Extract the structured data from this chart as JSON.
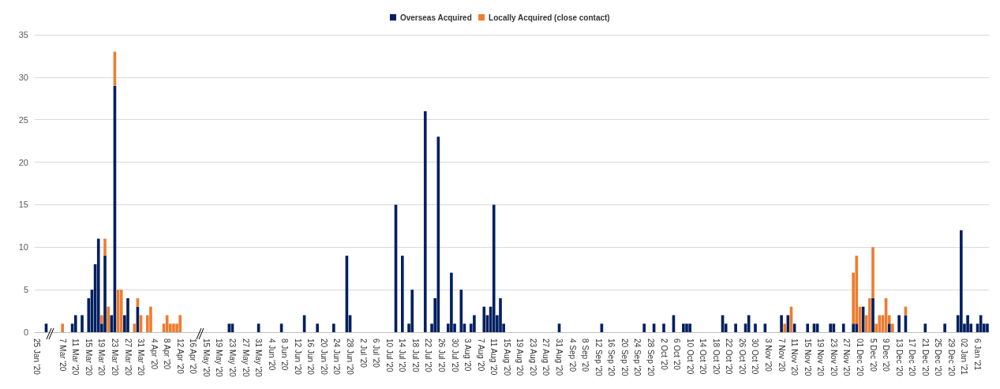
{
  "chart_data": {
    "type": "bar",
    "stacked": true,
    "categories": [
      "25 Jan '20",
      null,
      null,
      null,
      null,
      null,
      null,
      null,
      "7 Mar '20",
      null,
      null,
      null,
      "11 Mar '20",
      null,
      null,
      null,
      "15 Mar '20",
      null,
      null,
      null,
      "19 Mar '20",
      null,
      null,
      null,
      "23 Mar '20",
      null,
      null,
      null,
      "27 Mar '20",
      null,
      null,
      null,
      "31 Mar '20",
      null,
      null,
      null,
      "4 Apr '20",
      null,
      null,
      null,
      "8 Apr '20",
      null,
      null,
      null,
      "12 Apr '20",
      null,
      null,
      null,
      "16 Apr '20",
      null,
      null,
      null,
      "15 May '20",
      null,
      null,
      null,
      "19 May '20",
      null,
      null,
      null,
      "23 May '20",
      null,
      null,
      null,
      "27 May '20",
      null,
      null,
      null,
      "31 May '20",
      null,
      null,
      null,
      "4 Jun '20",
      null,
      null,
      null,
      "8 Jun '20",
      null,
      null,
      null,
      "12 Jun '20",
      null,
      null,
      null,
      "16 Jun '20",
      null,
      null,
      null,
      "20 Jun '20",
      null,
      null,
      null,
      "24 Jun '20",
      null,
      null,
      null,
      "28 Jun '20",
      null,
      null,
      null,
      "2 Jul '20",
      null,
      null,
      null,
      "6 Jul '20",
      null,
      null,
      null,
      "10 Jul '20",
      null,
      null,
      null,
      "14 Jul '20",
      null,
      null,
      null,
      "18 Jul '20",
      null,
      null,
      null,
      "22 Jul '20",
      null,
      null,
      null,
      "26 Jul '20",
      null,
      null,
      null,
      "30 Jul '20",
      null,
      null,
      null,
      "3 Aug '20",
      null,
      null,
      null,
      "7 Aug '20",
      null,
      null,
      null,
      "11 Aug '20",
      null,
      null,
      null,
      "15 Aug '20",
      null,
      null,
      null,
      "19 Aug '20",
      null,
      null,
      null,
      "23 Aug '20",
      null,
      null,
      null,
      "27 Aug '20",
      null,
      null,
      null,
      "31 Aug '20",
      null,
      null,
      null,
      "4 Sep '20",
      null,
      null,
      null,
      "8 Sep '20",
      null,
      null,
      null,
      "12 Sep '20",
      null,
      null,
      null,
      "16 Sep '20",
      null,
      null,
      null,
      "20 Sep '20",
      null,
      null,
      null,
      "24 Sep '20",
      null,
      null,
      null,
      "28 Sep '20",
      null,
      null,
      null,
      "2 Oct '20",
      null,
      null,
      null,
      "6 Oct '20",
      null,
      null,
      null,
      "10 Oct '20",
      null,
      null,
      null,
      "14 Oct '20",
      null,
      null,
      null,
      "18 Oct '20",
      null,
      null,
      null,
      "22 Oct '20",
      null,
      null,
      null,
      "26 Oct '20",
      null,
      null,
      null,
      "30 Oct '20",
      null,
      null,
      null,
      "3 Nov '20",
      null,
      null,
      null,
      "7 Nov '20",
      null,
      null,
      null,
      "11 Nov '20",
      null,
      null,
      null,
      "15 Nov '20",
      null,
      null,
      null,
      "19 Nov '20",
      null,
      null,
      null,
      "23 Nov '20",
      null,
      null,
      null,
      "27 Nov '20",
      null,
      null,
      null,
      "01 Dec '20",
      null,
      null,
      null,
      "5 Dec '20",
      null,
      null,
      null,
      "9 Dec '20",
      null,
      null,
      null,
      "13 Dec '20",
      null,
      null,
      null,
      "17 Dec '20",
      null,
      null,
      null,
      "21 Dec '20",
      null,
      null,
      null,
      "25 Dec '20",
      null,
      null,
      null,
      "29 Dec '20",
      null,
      null,
      null,
      "02 Jan '21",
      null,
      null,
      null,
      "6 Jan '21",
      null,
      null,
      null
    ],
    "series": [
      {
        "name": "Overseas Acquired",
        "color": "#002060",
        "values": [
          0,
          0,
          0,
          1,
          0,
          0,
          0,
          0,
          0,
          0,
          0,
          1,
          2,
          0,
          2,
          0,
          4,
          5,
          8,
          11,
          1,
          9,
          0,
          2,
          29,
          0,
          0,
          2,
          4,
          0,
          0,
          3,
          0,
          0,
          0,
          0,
          0,
          0,
          0,
          0,
          0,
          0,
          0,
          0,
          0,
          0,
          0,
          0,
          0,
          0,
          0,
          0,
          0,
          0,
          0,
          0,
          0,
          0,
          0,
          1,
          1,
          0,
          0,
          0,
          0,
          0,
          0,
          0,
          1,
          0,
          0,
          0,
          0,
          0,
          0,
          1,
          0,
          0,
          0,
          0,
          0,
          0,
          2,
          0,
          0,
          0,
          1,
          0,
          0,
          0,
          0,
          1,
          0,
          0,
          0,
          9,
          2,
          0,
          0,
          0,
          0,
          0,
          0,
          0,
          0,
          0,
          0,
          0,
          0,
          0,
          15,
          0,
          9,
          0,
          1,
          5,
          0,
          0,
          0,
          26,
          0,
          1,
          4,
          23,
          0,
          0,
          1,
          7,
          1,
          0,
          5,
          1,
          0,
          1,
          2,
          0,
          0,
          3,
          2,
          3,
          15,
          2,
          4,
          1,
          0,
          0,
          0,
          0,
          0,
          0,
          0,
          0,
          0,
          0,
          0,
          0,
          0,
          0,
          0,
          0,
          1,
          0,
          0,
          0,
          0,
          0,
          0,
          0,
          0,
          0,
          0,
          0,
          0,
          1,
          0,
          0,
          0,
          0,
          0,
          0,
          0,
          0,
          0,
          0,
          0,
          0,
          1,
          0,
          0,
          1,
          0,
          0,
          1,
          0,
          0,
          2,
          0,
          0,
          1,
          1,
          1,
          0,
          0,
          0,
          0,
          0,
          0,
          0,
          0,
          0,
          2,
          1,
          0,
          0,
          1,
          0,
          0,
          1,
          2,
          0,
          1,
          0,
          0,
          1,
          0,
          0,
          0,
          0,
          2,
          0,
          2,
          0,
          1,
          0,
          0,
          0,
          1,
          0,
          1,
          1,
          0,
          0,
          0,
          1,
          1,
          0,
          0,
          1,
          0,
          0,
          1,
          1,
          0,
          3,
          0,
          0,
          4,
          0,
          0,
          0,
          0,
          1,
          0,
          0,
          2,
          0,
          2,
          0,
          0,
          0,
          0,
          0,
          1,
          0,
          0,
          0,
          0,
          0,
          1,
          0,
          0,
          0,
          2,
          12,
          1,
          2,
          1,
          0,
          1,
          2,
          1,
          1
        ]
      },
      {
        "name": "Locally Acquired (close contact)",
        "color": "#ed7d31",
        "values": [
          0,
          0,
          0,
          0,
          0,
          0,
          0,
          0,
          1,
          0,
          0,
          0,
          0,
          0,
          0,
          0,
          0,
          0,
          0,
          0,
          1,
          2,
          3,
          0,
          4,
          5,
          5,
          0,
          0,
          0,
          1,
          1,
          2,
          0,
          2,
          3,
          0,
          0,
          0,
          1,
          2,
          1,
          1,
          1,
          2,
          0,
          0,
          0,
          0,
          0,
          0,
          0,
          0,
          0,
          0,
          0,
          0,
          0,
          0,
          0,
          0,
          0,
          0,
          0,
          0,
          0,
          0,
          0,
          0,
          0,
          0,
          0,
          0,
          0,
          0,
          0,
          0,
          0,
          0,
          0,
          0,
          0,
          0,
          0,
          0,
          0,
          0,
          0,
          0,
          0,
          0,
          0,
          0,
          0,
          0,
          0,
          0,
          0,
          0,
          0,
          0,
          0,
          0,
          0,
          0,
          0,
          0,
          0,
          0,
          0,
          0,
          0,
          0,
          0,
          0,
          0,
          0,
          0,
          0,
          0,
          0,
          0,
          0,
          0,
          0,
          0,
          0,
          0,
          0,
          0,
          0,
          0,
          0,
          0,
          0,
          0,
          0,
          0,
          0,
          0,
          0,
          0,
          0,
          0,
          0,
          0,
          0,
          0,
          0,
          0,
          0,
          0,
          0,
          0,
          0,
          0,
          0,
          0,
          0,
          0,
          0,
          0,
          0,
          0,
          0,
          0,
          0,
          0,
          0,
          0,
          0,
          0,
          0,
          0,
          0,
          0,
          0,
          0,
          0,
          0,
          0,
          0,
          0,
          0,
          0,
          0,
          0,
          0,
          0,
          0,
          0,
          0,
          0,
          0,
          0,
          0,
          0,
          0,
          0,
          0,
          0,
          0,
          0,
          0,
          0,
          0,
          0,
          0,
          0,
          0,
          0,
          0,
          0,
          0,
          0,
          0,
          0,
          0,
          0,
          0,
          0,
          0,
          0,
          0,
          0,
          0,
          0,
          0,
          0,
          1,
          0,
          3,
          0,
          0,
          0,
          0,
          0,
          0,
          0,
          0,
          0,
          0,
          0,
          0,
          0,
          0,
          0,
          0,
          0,
          0,
          6,
          8,
          3,
          0,
          2,
          4,
          6,
          1,
          2,
          2,
          4,
          1,
          1,
          0,
          0,
          0,
          1,
          0,
          0,
          0,
          0,
          0,
          0,
          0,
          0,
          0,
          0,
          0,
          0,
          0,
          0,
          0,
          0,
          0,
          0,
          0,
          0,
          0,
          0,
          0,
          0,
          0
        ]
      }
    ],
    "ylim": [
      0,
      35
    ],
    "yticks": [
      0,
      5,
      10,
      15,
      20,
      25,
      30,
      35
    ],
    "grid": "y",
    "legend": "top"
  }
}
